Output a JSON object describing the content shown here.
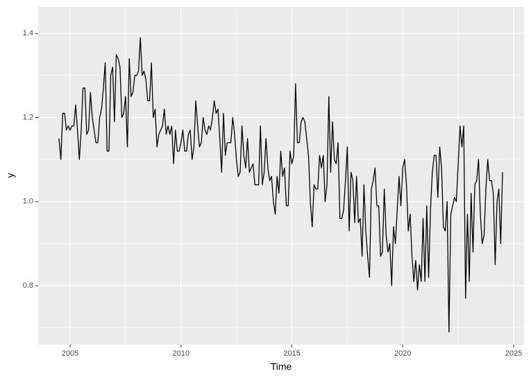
{
  "chart_data": {
    "type": "line",
    "xlabel": "Time",
    "ylabel": "y",
    "xlim": [
      2003.56,
      2025.47
    ],
    "ylim": [
      0.66,
      1.463
    ],
    "xticks": [
      2005,
      2010,
      2015,
      2020,
      2025
    ],
    "yticks": [
      0.8,
      {
        "value": 1,
        "label": "1.0"
      },
      1.2,
      1.4
    ],
    "minor_xticks": [
      2007.5,
      2012.5,
      2017.5,
      2022.5
    ],
    "minor_yticks": [
      0.7,
      0.9,
      1.1,
      1.3
    ],
    "grid": true,
    "x": [
      2004.5,
      2004.583,
      2004.667,
      2004.75,
      2004.833,
      2004.917,
      2005,
      2005.083,
      2005.167,
      2005.25,
      2005.333,
      2005.417,
      2005.5,
      2005.583,
      2005.667,
      2005.75,
      2005.833,
      2005.917,
      2006,
      2006.083,
      2006.167,
      2006.25,
      2006.333,
      2006.417,
      2006.5,
      2006.583,
      2006.667,
      2006.75,
      2006.833,
      2006.917,
      2007,
      2007.083,
      2007.167,
      2007.25,
      2007.333,
      2007.417,
      2007.5,
      2007.583,
      2007.667,
      2007.75,
      2007.833,
      2007.917,
      2008,
      2008.083,
      2008.167,
      2008.25,
      2008.333,
      2008.417,
      2008.5,
      2008.583,
      2008.667,
      2008.75,
      2008.833,
      2008.917,
      2009,
      2009.083,
      2009.167,
      2009.25,
      2009.333,
      2009.417,
      2009.5,
      2009.583,
      2009.667,
      2009.75,
      2009.833,
      2009.917,
      2010,
      2010.083,
      2010.167,
      2010.25,
      2010.333,
      2010.417,
      2010.5,
      2010.583,
      2010.667,
      2010.75,
      2010.833,
      2010.917,
      2011,
      2011.083,
      2011.167,
      2011.25,
      2011.333,
      2011.417,
      2011.5,
      2011.583,
      2011.667,
      2011.75,
      2011.833,
      2011.917,
      2012,
      2012.083,
      2012.167,
      2012.25,
      2012.333,
      2012.417,
      2012.5,
      2012.583,
      2012.667,
      2012.75,
      2012.833,
      2012.917,
      2013,
      2013.083,
      2013.167,
      2013.25,
      2013.333,
      2013.417,
      2013.5,
      2013.583,
      2013.667,
      2013.75,
      2013.833,
      2013.917,
      2014,
      2014.083,
      2014.167,
      2014.25,
      2014.333,
      2014.417,
      2014.5,
      2014.583,
      2014.667,
      2014.75,
      2014.833,
      2014.917,
      2015,
      2015.083,
      2015.167,
      2015.25,
      2015.333,
      2015.417,
      2015.5,
      2015.583,
      2015.667,
      2015.75,
      2015.833,
      2015.917,
      2016,
      2016.083,
      2016.167,
      2016.25,
      2016.333,
      2016.417,
      2016.5,
      2016.583,
      2016.667,
      2016.75,
      2016.833,
      2016.917,
      2017,
      2017.083,
      2017.167,
      2017.25,
      2017.333,
      2017.417,
      2017.5,
      2017.583,
      2017.667,
      2017.75,
      2017.833,
      2017.917,
      2018,
      2018.083,
      2018.167,
      2018.25,
      2018.333,
      2018.417,
      2018.5,
      2018.583,
      2018.667,
      2018.75,
      2018.833,
      2018.917,
      2019,
      2019.083,
      2019.167,
      2019.25,
      2019.333,
      2019.417,
      2019.5,
      2019.583,
      2019.667,
      2019.75,
      2019.833,
      2019.917,
      2020,
      2020.083,
      2020.167,
      2020.25,
      2020.333,
      2020.417,
      2020.5,
      2020.583,
      2020.667,
      2020.75,
      2020.833,
      2020.917,
      2021,
      2021.083,
      2021.167,
      2021.25,
      2021.333,
      2021.417,
      2021.5,
      2021.583,
      2021.667,
      2021.75,
      2021.833,
      2021.917,
      2022,
      2022.083,
      2022.167,
      2022.25,
      2022.333,
      2022.417,
      2022.5,
      2022.583,
      2022.667,
      2022.75,
      2022.833,
      2022.917,
      2023,
      2023.083,
      2023.167,
      2023.25,
      2023.333,
      2023.417,
      2023.5,
      2023.583,
      2023.667,
      2023.75,
      2023.833,
      2023.917,
      2024,
      2024.083,
      2024.167,
      2024.25,
      2024.333,
      2024.417,
      2024.5
    ],
    "series": [
      {
        "color": "#000000",
        "values": [
          1.15,
          1.1,
          1.21,
          1.21,
          1.17,
          1.18,
          1.17,
          1.18,
          1.18,
          1.23,
          1.17,
          1.1,
          1.17,
          1.27,
          1.27,
          1.16,
          1.17,
          1.26,
          1.2,
          1.17,
          1.14,
          1.14,
          1.2,
          1.22,
          1.27,
          1.33,
          1.12,
          1.12,
          1.3,
          1.32,
          1.19,
          1.35,
          1.34,
          1.32,
          1.2,
          1.21,
          1.25,
          1.13,
          1.34,
          1.25,
          1.26,
          1.3,
          1.3,
          1.31,
          1.39,
          1.3,
          1.31,
          1.29,
          1.24,
          1.24,
          1.33,
          1.2,
          1.22,
          1.13,
          1.16,
          1.17,
          1.18,
          1.22,
          1.16,
          1.18,
          1.16,
          1.18,
          1.09,
          1.17,
          1.12,
          1.12,
          1.14,
          1.17,
          1.12,
          1.12,
          1.16,
          1.17,
          1.1,
          1.13,
          1.24,
          1.18,
          1.13,
          1.14,
          1.2,
          1.17,
          1.16,
          1.18,
          1.17,
          1.2,
          1.24,
          1.21,
          1.22,
          1.15,
          1.07,
          1.21,
          1.11,
          1.14,
          1.14,
          1.14,
          1.2,
          1.16,
          1.1,
          1.06,
          1.07,
          1.18,
          1.11,
          1.08,
          1.15,
          1.07,
          1.08,
          1.09,
          1.04,
          1.04,
          1.04,
          1.18,
          1.04,
          1.07,
          1.15,
          1.08,
          1.05,
          1.06,
          1.0,
          0.97,
          1.06,
          1.02,
          1.12,
          1.06,
          1.08,
          0.99,
          0.99,
          1.12,
          1.09,
          1.11,
          1.28,
          1.14,
          1.14,
          1.19,
          1.2,
          1.19,
          1.15,
          1.11,
          1.0,
          0.94,
          1.04,
          1.03,
          1.03,
          1.11,
          1.08,
          1.11,
          1.0,
          1.04,
          1.25,
          1.07,
          1.19,
          1.1,
          1.09,
          1.14,
          0.96,
          0.96,
          0.98,
          1.05,
          1.13,
          0.93,
          1.07,
          1.05,
          0.95,
          1.06,
          0.95,
          0.96,
          0.87,
          1.04,
          0.93,
          0.87,
          0.82,
          1.03,
          1.05,
          1.08,
          0.99,
          0.99,
          0.87,
          0.88,
          1.03,
          0.92,
          0.88,
          0.9,
          0.8,
          0.94,
          0.9,
          0.98,
          1.06,
          0.99,
          1.08,
          1.1,
          1.04,
          0.93,
          0.97,
          0.87,
          0.81,
          0.86,
          0.79,
          0.85,
          0.81,
          0.96,
          0.81,
          0.99,
          0.82,
          0.98,
          1.07,
          1.11,
          1.11,
          1.01,
          1.13,
          1.08,
          0.94,
          0.93,
          1.0,
          0.69,
          0.97,
          0.99,
          1.01,
          1.0,
          1.09,
          1.18,
          1.13,
          1.18,
          0.77,
          0.97,
          0.81,
          1.02,
          0.88,
          1.04,
          1.05,
          1.1,
          0.97,
          0.9,
          0.92,
          1.03,
          1.1,
          1.05,
          1.05,
          1.02,
          0.85,
          1.0,
          1.03,
          0.9,
          1.07
        ]
      }
    ]
  }
}
